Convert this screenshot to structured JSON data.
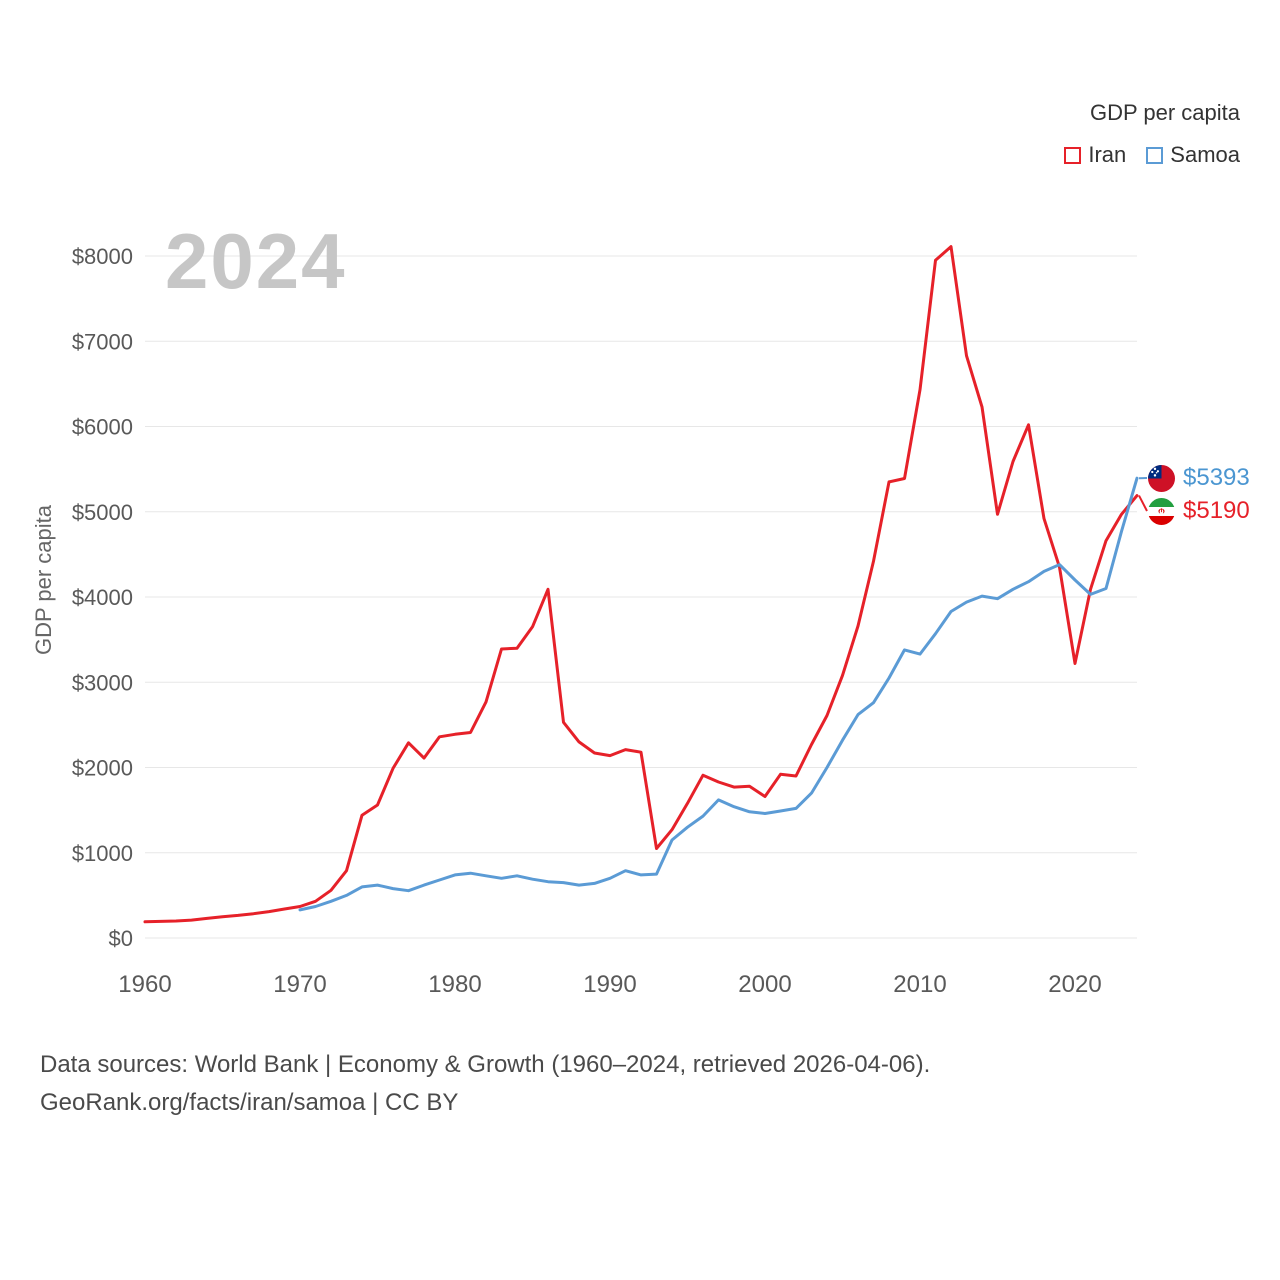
{
  "watermark": "2024",
  "y_axis_title": "GDP per capita",
  "legend": {
    "title": "GDP per capita",
    "items": [
      {
        "label": "Iran",
        "color": "#e62129"
      },
      {
        "label": "Samoa",
        "color": "#5b9bd5"
      }
    ]
  },
  "end_labels": [
    {
      "country": "Samoa",
      "value": "$5393",
      "color": "#4b96d1"
    },
    {
      "country": "Iran",
      "value": "$5190",
      "color": "#e62129"
    }
  ],
  "footer": {
    "line1": "Data sources: World Bank | Economy & Growth (1960–2024, retrieved 2026-04-06).",
    "line2": "GeoRank.org/facts/iran/samoa | CC BY"
  },
  "chart_data": {
    "type": "line",
    "title": "GDP per capita",
    "xlabel": "",
    "ylabel": "GDP per capita",
    "xlim": [
      1960,
      2024
    ],
    "ylim": [
      0,
      8000
    ],
    "x_ticks": [
      1960,
      1970,
      1980,
      1990,
      2000,
      2010,
      2020
    ],
    "y_ticks": [
      0,
      1000,
      2000,
      3000,
      4000,
      5000,
      6000,
      7000,
      8000
    ],
    "grid": "horizontal",
    "legend_position": "top-right",
    "series": [
      {
        "name": "Iran",
        "color": "#e62129",
        "start_year": 1960,
        "values": [
          190,
          195,
          200,
          210,
          230,
          250,
          265,
          285,
          310,
          340,
          370,
          430,
          560,
          790,
          1440,
          1560,
          1990,
          2290,
          2110,
          2360,
          2390,
          2410,
          2770,
          3390,
          3400,
          3650,
          4090,
          2530,
          2300,
          2170,
          2140,
          2210,
          2180,
          1050,
          1270,
          1580,
          1910,
          1830,
          1770,
          1780,
          1660,
          1920,
          1900,
          2270,
          2610,
          3080,
          3660,
          4420,
          5350,
          5390,
          6430,
          7950,
          8110,
          6830,
          6230,
          4970,
          5590,
          6020,
          4920,
          4350,
          3220,
          4090,
          4660,
          4970,
          5190
        ]
      },
      {
        "name": "Samoa",
        "color": "#5b9bd5",
        "start_year": 1970,
        "values": [
          330,
          370,
          430,
          500,
          600,
          620,
          580,
          555,
          620,
          680,
          740,
          760,
          730,
          700,
          730,
          690,
          660,
          650,
          620,
          640,
          700,
          790,
          740,
          750,
          1150,
          1300,
          1430,
          1620,
          1540,
          1480,
          1460,
          1490,
          1520,
          1700,
          2000,
          2320,
          2620,
          2760,
          3050,
          3380,
          3330,
          3570,
          3830,
          3940,
          4010,
          3980,
          4090,
          4180,
          4300,
          4380,
          4200,
          4030,
          4100,
          4770,
          5393
        ]
      }
    ]
  }
}
